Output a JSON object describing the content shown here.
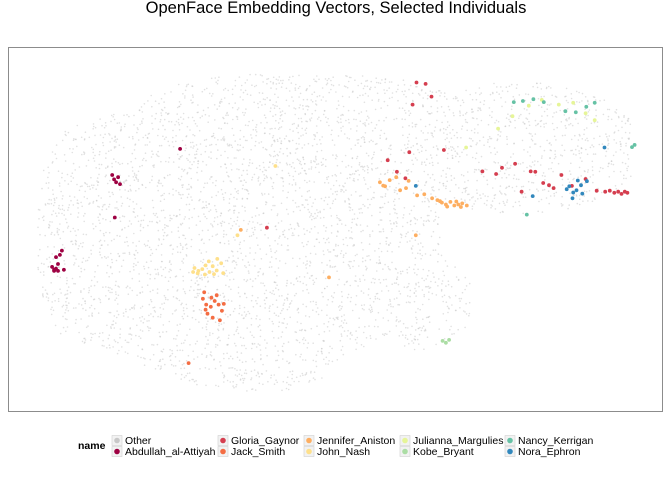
{
  "chart_data": {
    "type": "scatter",
    "title": "OpenFace Embedding Vectors,  Selected Individuals",
    "xlabel": "",
    "ylabel": "",
    "grid": false,
    "axes_visible": false,
    "legend_position": "bottom",
    "legend": {
      "title": "name",
      "entries": [
        {
          "name": "Other",
          "color": "#c8c8c8"
        },
        {
          "name": "Abdullah_al-Attiyah",
          "color": "#9e0142"
        },
        {
          "name": "Gloria_Gaynor",
          "color": "#d53e4f"
        },
        {
          "name": "Jack_Smith",
          "color": "#f46d43"
        },
        {
          "name": "Jennifer_Aniston",
          "color": "#fdae61"
        },
        {
          "name": "John_Nash",
          "color": "#fee08b"
        },
        {
          "name": "Julianna_Margulies",
          "color": "#e6f598"
        },
        {
          "name": "Kobe_Bryant",
          "color": "#abdda4"
        },
        {
          "name": "Nancy_Kerrigan",
          "color": "#66c2a5"
        },
        {
          "name": "Nora_Ephron",
          "color": "#3288bd"
        }
      ]
    },
    "xlim": [
      0,
      100
    ],
    "ylim": [
      0,
      100
    ],
    "series": [
      {
        "name": "Abdullah_al-Attiyah",
        "color": "#9e0142",
        "x": [
          6.6,
          6.9,
          7.2,
          7.5,
          7.2,
          7.8,
          8.1,
          6.9,
          7.5,
          8.4,
          15.8,
          16.1,
          16.4,
          16.7,
          17.0,
          16.2,
          26.2
        ],
        "y": [
          39.7,
          38.9,
          39.2,
          40.5,
          42.4,
          43.0,
          44.2,
          38.6,
          38.6,
          38.9,
          65.0,
          63.8,
          63.0,
          64.4,
          62.5,
          53.3,
          72.2
        ]
      },
      {
        "name": "Gloria_Gaynor",
        "color": "#d53e4f",
        "x": [
          58.0,
          59.4,
          60.7,
          61.3,
          66.6,
          61.8,
          64.7,
          72.5,
          74.6,
          75.5,
          77.5,
          78.5,
          79.9,
          80.6,
          81.8,
          82.7,
          83.4,
          91.3,
          92.0,
          92.7,
          93.3,
          93.8,
          94.3,
          94.7,
          90.0,
          88.3,
          86.2,
          84.6,
          62.4,
          63.8,
          39.5
        ],
        "y": [
          69.1,
          65.9,
          64.1,
          71.3,
          71.9,
          84.4,
          86.6,
          66.0,
          65.3,
          67.0,
          68.1,
          60.4,
          66.0,
          65.9,
          62.8,
          62.2,
          61.4,
          60.4,
          60.7,
          60.1,
          60.4,
          59.8,
          60.4,
          60.1,
          60.7,
          63.9,
          62.0,
          65.0,
          90.5,
          90.1,
          50.5
        ]
      },
      {
        "name": "Jack_Smith",
        "color": "#f46d43",
        "x": [
          29.7,
          30.2,
          30.9,
          31.5,
          32.1,
          32.6,
          30.4,
          31.2,
          32.3,
          30.1,
          31.8,
          29.9,
          32.9,
          31.0,
          27.5
        ],
        "y": [
          30.9,
          29.3,
          28.7,
          30.3,
          29.3,
          27.6,
          26.8,
          25.7,
          25.0,
          27.9,
          31.9,
          32.7,
          29.5,
          31.2,
          13.2
        ]
      },
      {
        "name": "Jennifer_Aniston",
        "color": "#fdae61",
        "x": [
          56.8,
          57.6,
          58.3,
          59.3,
          60.8,
          62.5,
          63.6,
          64.8,
          65.6,
          66.3,
          66.9,
          67.6,
          68.2,
          68.8,
          69.4,
          70.1,
          66.0,
          67.1,
          68.5,
          69.2,
          61.2,
          59.9,
          57.3,
          35.5,
          62.3,
          49.0
        ],
        "y": [
          63.0,
          61.9,
          63.6,
          64.4,
          61.4,
          59.4,
          59.7,
          58.6,
          58.1,
          57.4,
          56.9,
          57.6,
          56.6,
          56.9,
          57.2,
          56.6,
          57.8,
          56.3,
          57.7,
          56.2,
          63.4,
          60.8,
          62.1,
          49.9,
          48.4,
          36.8
        ]
      },
      {
        "name": "John_Nash",
        "color": "#fee08b",
        "x": [
          28.4,
          29.0,
          29.6,
          30.1,
          30.7,
          31.2,
          31.8,
          28.9,
          30.0,
          31.4,
          32.5,
          28.2,
          30.6,
          31.9,
          32.8,
          40.8,
          35.0
        ],
        "y": [
          39.4,
          38.6,
          39.1,
          40.1,
          38.3,
          39.9,
          38.7,
          37.9,
          37.6,
          37.7,
          40.7,
          38.3,
          41.2,
          41.9,
          38.0,
          67.5,
          48.4
        ]
      },
      {
        "name": "Julianna_Margulies",
        "color": "#e6f598",
        "x": [
          79.6,
          81.6,
          84.2,
          86.4,
          88.3,
          89.7,
          70.0,
          74.9,
          77.1
        ],
        "y": [
          84.1,
          85.7,
          84.4,
          84.9,
          82.0,
          80.1,
          72.6,
          77.8,
          81.2
        ]
      },
      {
        "name": "Kobe_Bryant",
        "color": "#abdda4",
        "x": [
          66.4,
          66.9,
          67.4
        ],
        "y": [
          19.3,
          18.8,
          19.6
        ]
      },
      {
        "name": "Nancy_Kerrigan",
        "color": "#66c2a5",
        "x": [
          77.3,
          78.7,
          80.3,
          81.9,
          85.2,
          86.8,
          88.4,
          89.7,
          95.4,
          95.8,
          79.3
        ],
        "y": [
          85.1,
          85.4,
          85.9,
          85.1,
          82.6,
          82.3,
          83.8,
          84.9,
          72.7,
          73.3,
          54.1
        ]
      },
      {
        "name": "Nora_Ephron",
        "color": "#3288bd",
        "x": [
          85.8,
          86.4,
          86.9,
          87.6,
          87.1,
          86.3,
          85.4,
          87.8,
          88.5,
          91.2,
          80.2,
          62.3
        ],
        "y": [
          61.9,
          60.2,
          60.8,
          62.2,
          63.5,
          58.6,
          61.1,
          59.9,
          63.3,
          72.6,
          59.2,
          62.0
        ]
      }
    ]
  }
}
